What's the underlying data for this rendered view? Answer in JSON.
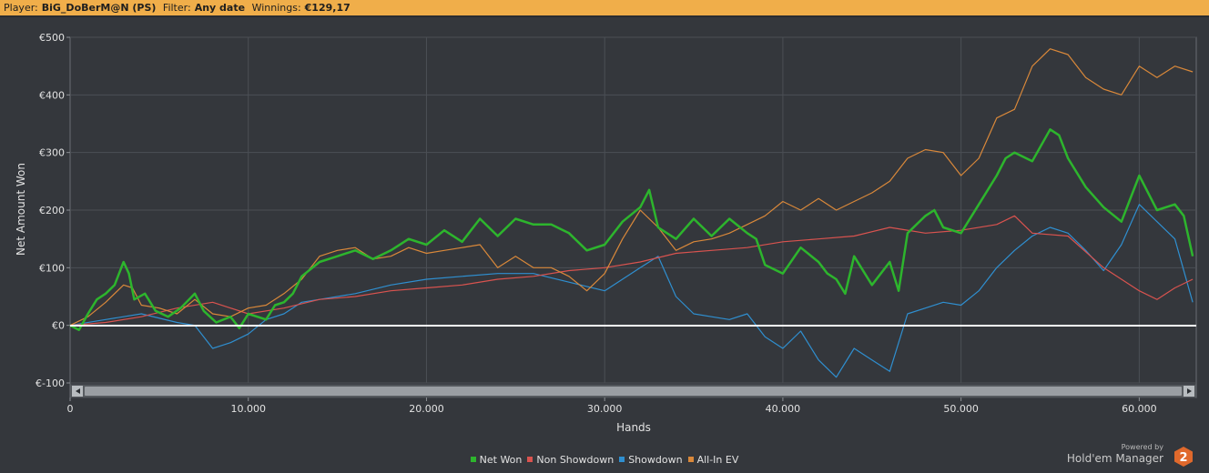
{
  "header": {
    "player_label": "Player:",
    "player_value": "BiG_DoBerM@N (PS)",
    "filter_label": "Filter:",
    "filter_value": "Any date",
    "winnings_label": "Winnings:",
    "winnings_value": "€129,17"
  },
  "branding": {
    "powered_by": "Powered by",
    "product_name": "Hold'em Manager",
    "logo_number": "2",
    "logo_color": "#e0692c"
  },
  "chart_data": {
    "type": "line",
    "xlabel": "Hands",
    "ylabel": "Net Amount Won",
    "xlim": [
      0,
      63200
    ],
    "ylim": [
      -100,
      500
    ],
    "grid": true,
    "legend_position": "bottom-center",
    "x_tick_values": [
      0,
      10000,
      20000,
      30000,
      40000,
      50000,
      60000
    ],
    "x_tick_labels": [
      "0",
      "10.000",
      "20.000",
      "30.000",
      "40.000",
      "50.000",
      "60.000"
    ],
    "y_tick_values": [
      -100,
      0,
      100,
      200,
      300,
      400,
      500
    ],
    "y_tick_labels": [
      "€-100",
      "€0",
      "€100",
      "€200",
      "€300",
      "€400",
      "€500"
    ],
    "zero_line": 0,
    "series": [
      {
        "name": "Net Won",
        "color": "#2db52d",
        "points": [
          [
            0,
            0
          ],
          [
            500,
            -8
          ],
          [
            1000,
            20
          ],
          [
            1500,
            45
          ],
          [
            2000,
            55
          ],
          [
            2500,
            70
          ],
          [
            3000,
            110
          ],
          [
            3300,
            90
          ],
          [
            3600,
            45
          ],
          [
            4200,
            55
          ],
          [
            4800,
            25
          ],
          [
            5500,
            15
          ],
          [
            6200,
            30
          ],
          [
            7000,
            55
          ],
          [
            7500,
            25
          ],
          [
            8200,
            5
          ],
          [
            9000,
            15
          ],
          [
            9500,
            -5
          ],
          [
            10000,
            20
          ],
          [
            11000,
            10
          ],
          [
            11500,
            35
          ],
          [
            12000,
            40
          ],
          [
            12500,
            55
          ],
          [
            13000,
            85
          ],
          [
            14000,
            110
          ],
          [
            15000,
            120
          ],
          [
            16000,
            130
          ],
          [
            17000,
            115
          ],
          [
            18000,
            130
          ],
          [
            19000,
            150
          ],
          [
            20000,
            140
          ],
          [
            21000,
            165
          ],
          [
            22000,
            145
          ],
          [
            23000,
            185
          ],
          [
            24000,
            155
          ],
          [
            25000,
            185
          ],
          [
            26000,
            175
          ],
          [
            27000,
            175
          ],
          [
            28000,
            160
          ],
          [
            29000,
            130
          ],
          [
            30000,
            140
          ],
          [
            31000,
            180
          ],
          [
            32000,
            205
          ],
          [
            32500,
            235
          ],
          [
            33000,
            170
          ],
          [
            34000,
            150
          ],
          [
            35000,
            185
          ],
          [
            36000,
            155
          ],
          [
            37000,
            185
          ],
          [
            38000,
            160
          ],
          [
            38500,
            150
          ],
          [
            39000,
            105
          ],
          [
            40000,
            90
          ],
          [
            41000,
            135
          ],
          [
            42000,
            110
          ],
          [
            42500,
            90
          ],
          [
            43000,
            80
          ],
          [
            43500,
            55
          ],
          [
            44000,
            120
          ],
          [
            45000,
            70
          ],
          [
            46000,
            110
          ],
          [
            46500,
            60
          ],
          [
            47000,
            160
          ],
          [
            48000,
            190
          ],
          [
            48500,
            200
          ],
          [
            49000,
            170
          ],
          [
            50000,
            160
          ],
          [
            51000,
            210
          ],
          [
            52000,
            260
          ],
          [
            52500,
            290
          ],
          [
            53000,
            300
          ],
          [
            54000,
            285
          ],
          [
            55000,
            340
          ],
          [
            55500,
            330
          ],
          [
            56000,
            290
          ],
          [
            57000,
            240
          ],
          [
            58000,
            205
          ],
          [
            59000,
            180
          ],
          [
            60000,
            260
          ],
          [
            61000,
            200
          ],
          [
            62000,
            210
          ],
          [
            62500,
            190
          ],
          [
            63000,
            120
          ]
        ]
      },
      {
        "name": "Non Showdown",
        "color": "#d9534f",
        "points": [
          [
            0,
            0
          ],
          [
            2000,
            5
          ],
          [
            4000,
            15
          ],
          [
            6000,
            30
          ],
          [
            8000,
            40
          ],
          [
            10000,
            20
          ],
          [
            12000,
            30
          ],
          [
            14000,
            45
          ],
          [
            16000,
            50
          ],
          [
            18000,
            60
          ],
          [
            20000,
            65
          ],
          [
            22000,
            70
          ],
          [
            24000,
            80
          ],
          [
            26000,
            85
          ],
          [
            28000,
            95
          ],
          [
            30000,
            100
          ],
          [
            32000,
            110
          ],
          [
            34000,
            125
          ],
          [
            36000,
            130
          ],
          [
            38000,
            135
          ],
          [
            40000,
            145
          ],
          [
            42000,
            150
          ],
          [
            44000,
            155
          ],
          [
            46000,
            170
          ],
          [
            48000,
            160
          ],
          [
            50000,
            165
          ],
          [
            52000,
            175
          ],
          [
            53000,
            190
          ],
          [
            54000,
            160
          ],
          [
            56000,
            155
          ],
          [
            58000,
            100
          ],
          [
            60000,
            60
          ],
          [
            61000,
            45
          ],
          [
            62000,
            65
          ],
          [
            63000,
            80
          ]
        ]
      },
      {
        "name": "Showdown",
        "color": "#2f8fd0",
        "points": [
          [
            0,
            0
          ],
          [
            2000,
            10
          ],
          [
            4000,
            20
          ],
          [
            6000,
            5
          ],
          [
            7000,
            0
          ],
          [
            8000,
            -40
          ],
          [
            9000,
            -30
          ],
          [
            10000,
            -15
          ],
          [
            11000,
            10
          ],
          [
            12000,
            20
          ],
          [
            13000,
            40
          ],
          [
            14000,
            45
          ],
          [
            16000,
            55
          ],
          [
            18000,
            70
          ],
          [
            20000,
            80
          ],
          [
            22000,
            85
          ],
          [
            24000,
            90
          ],
          [
            26000,
            90
          ],
          [
            28000,
            75
          ],
          [
            30000,
            60
          ],
          [
            32000,
            100
          ],
          [
            33000,
            120
          ],
          [
            34000,
            50
          ],
          [
            35000,
            20
          ],
          [
            36000,
            15
          ],
          [
            37000,
            10
          ],
          [
            38000,
            20
          ],
          [
            39000,
            -20
          ],
          [
            40000,
            -40
          ],
          [
            41000,
            -10
          ],
          [
            42000,
            -60
          ],
          [
            43000,
            -90
          ],
          [
            44000,
            -40
          ],
          [
            45000,
            -60
          ],
          [
            46000,
            -80
          ],
          [
            47000,
            20
          ],
          [
            48000,
            30
          ],
          [
            49000,
            40
          ],
          [
            50000,
            35
          ],
          [
            51000,
            60
          ],
          [
            52000,
            100
          ],
          [
            53000,
            130
          ],
          [
            54000,
            155
          ],
          [
            55000,
            170
          ],
          [
            56000,
            160
          ],
          [
            57000,
            130
          ],
          [
            58000,
            95
          ],
          [
            59000,
            140
          ],
          [
            60000,
            210
          ],
          [
            61000,
            180
          ],
          [
            62000,
            150
          ],
          [
            63000,
            40
          ]
        ]
      },
      {
        "name": "All-In EV",
        "color": "#d9883a",
        "points": [
          [
            0,
            0
          ],
          [
            1000,
            15
          ],
          [
            2000,
            40
          ],
          [
            3000,
            70
          ],
          [
            3500,
            65
          ],
          [
            4000,
            35
          ],
          [
            5000,
            30
          ],
          [
            6000,
            20
          ],
          [
            7000,
            45
          ],
          [
            8000,
            20
          ],
          [
            9000,
            15
          ],
          [
            10000,
            30
          ],
          [
            11000,
            35
          ],
          [
            12000,
            55
          ],
          [
            13000,
            80
          ],
          [
            14000,
            120
          ],
          [
            15000,
            130
          ],
          [
            16000,
            135
          ],
          [
            17000,
            115
          ],
          [
            18000,
            120
          ],
          [
            19000,
            135
          ],
          [
            20000,
            125
          ],
          [
            21000,
            130
          ],
          [
            22000,
            135
          ],
          [
            23000,
            140
          ],
          [
            24000,
            100
          ],
          [
            25000,
            120
          ],
          [
            26000,
            100
          ],
          [
            27000,
            100
          ],
          [
            28000,
            85
          ],
          [
            29000,
            60
          ],
          [
            30000,
            90
          ],
          [
            31000,
            150
          ],
          [
            32000,
            200
          ],
          [
            33000,
            170
          ],
          [
            34000,
            130
          ],
          [
            35000,
            145
          ],
          [
            36000,
            150
          ],
          [
            37000,
            160
          ],
          [
            38000,
            175
          ],
          [
            39000,
            190
          ],
          [
            40000,
            215
          ],
          [
            41000,
            200
          ],
          [
            42000,
            220
          ],
          [
            43000,
            200
          ],
          [
            44000,
            215
          ],
          [
            45000,
            230
          ],
          [
            46000,
            250
          ],
          [
            47000,
            290
          ],
          [
            48000,
            305
          ],
          [
            49000,
            300
          ],
          [
            50000,
            260
          ],
          [
            51000,
            290
          ],
          [
            52000,
            360
          ],
          [
            53000,
            375
          ],
          [
            54000,
            450
          ],
          [
            55000,
            480
          ],
          [
            56000,
            470
          ],
          [
            57000,
            430
          ],
          [
            58000,
            410
          ],
          [
            59000,
            400
          ],
          [
            60000,
            450
          ],
          [
            61000,
            430
          ],
          [
            62000,
            450
          ],
          [
            63000,
            440
          ]
        ]
      }
    ]
  }
}
